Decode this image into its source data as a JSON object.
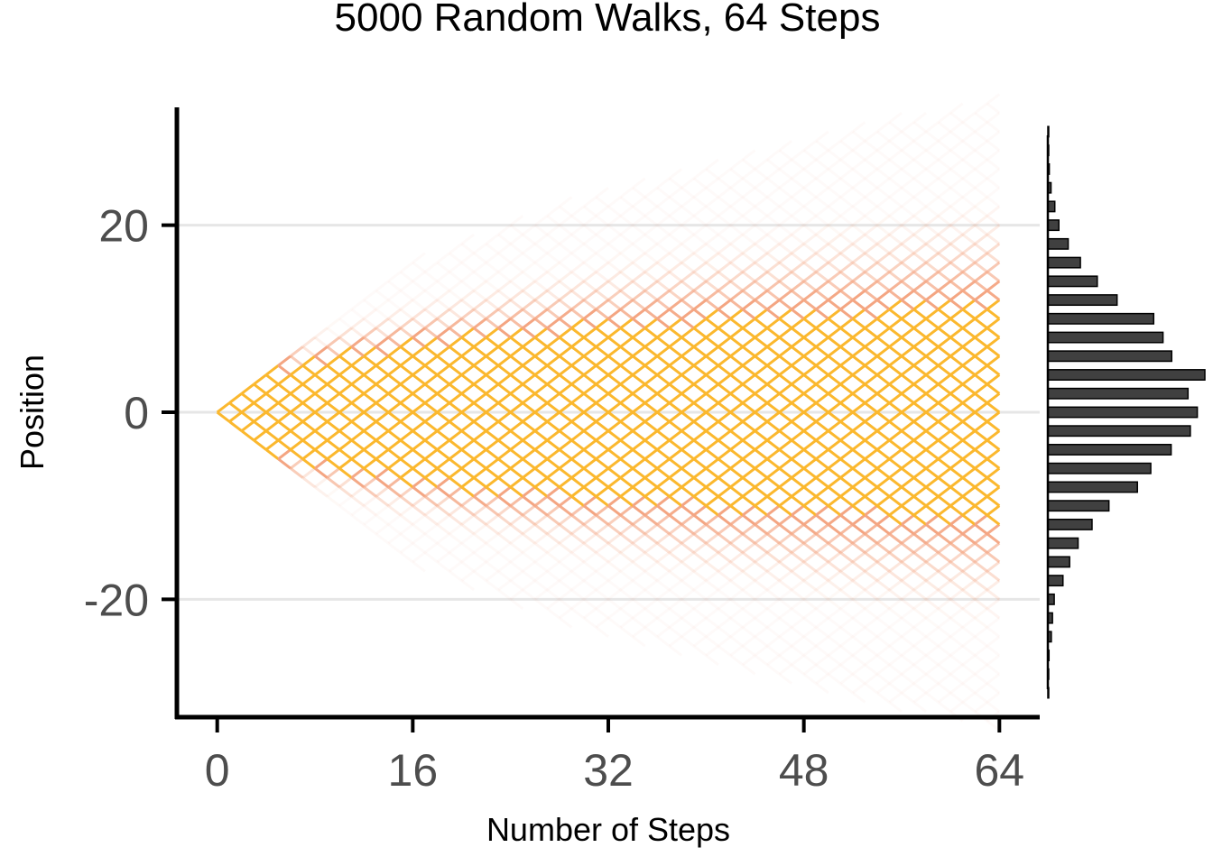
{
  "chart_data": {
    "type": "line",
    "title": "5000 Random Walks, 64 Steps",
    "xlabel": "Number of Steps",
    "ylabel": "Position",
    "x_ticks": [
      0,
      16,
      32,
      48,
      64
    ],
    "y_ticks": [
      -20,
      0,
      20
    ],
    "xlim": [
      -3.3,
      67.3
    ],
    "ylim": [
      -32.6,
      32.6
    ],
    "grid": "horizontal major lines only",
    "walks": {
      "count": 5000,
      "steps": 64,
      "start": 0,
      "step_size": 1,
      "color_core": "#fbb82e",
      "color_spread": "#f4a582"
    },
    "marginal_histogram": {
      "orientation": "horizontal",
      "bin_centers": [
        -30,
        -28,
        -26,
        -24,
        -22,
        -20,
        -18,
        -16,
        -14,
        -12,
        -10,
        -8,
        -6,
        -4,
        -2,
        0,
        2,
        4,
        6,
        8,
        10,
        12,
        14,
        16,
        18,
        20,
        22,
        24,
        26,
        28,
        30
      ],
      "counts": [
        1,
        2,
        4,
        12,
        16,
        22,
        52,
        75,
        104,
        152,
        210,
        308,
        354,
        424,
        490,
        514,
        482,
        540,
        426,
        396,
        364,
        238,
        170,
        112,
        70,
        38,
        24,
        11,
        5,
        2,
        1
      ],
      "bar_color": "#404040",
      "bar_outline": "#000000"
    }
  }
}
